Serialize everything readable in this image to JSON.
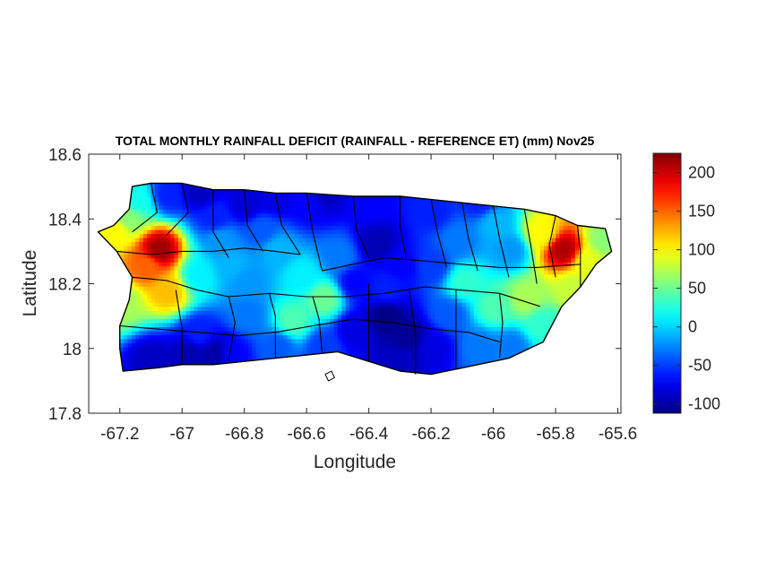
{
  "chart_data": {
    "type": "heatmap",
    "title": "TOTAL MONTHLY RAINFALL DEFICIT (RAINFALL - REFERENCE ET) (mm) Nov25",
    "xlabel": "Longitude",
    "ylabel": "Latitude",
    "xlim": [
      -67.3,
      -65.59
    ],
    "ylim": [
      17.8,
      18.6
    ],
    "xticks": [
      -67.2,
      -67,
      -66.8,
      -66.6,
      -66.4,
      -66.2,
      -66,
      -65.8,
      -65.6
    ],
    "xtick_labels": [
      "-67.2",
      "-67",
      "-66.8",
      "-66.6",
      "-66.4",
      "-66.2",
      "-66",
      "-65.8",
      "-65.6"
    ],
    "yticks": [
      17.8,
      18,
      18.2,
      18.4,
      18.6
    ],
    "ytick_labels": [
      "17.8",
      "18",
      "18.2",
      "18.4",
      "18.6"
    ],
    "colorbar": {
      "range": [
        -112,
        225
      ],
      "ticks": [
        -100,
        -50,
        0,
        50,
        100,
        150,
        200
      ],
      "tick_labels": [
        "-100",
        "-50",
        "0",
        "50",
        "100",
        "150",
        "200"
      ],
      "colormap": "jet"
    },
    "region": "Puerto Rico",
    "outline": [
      [
        -67.27,
        18.36
      ],
      [
        -67.22,
        18.38
      ],
      [
        -67.17,
        18.43
      ],
      [
        -67.16,
        18.5
      ],
      [
        -67.1,
        18.51
      ],
      [
        -67.0,
        18.51
      ],
      [
        -66.9,
        18.49
      ],
      [
        -66.8,
        18.49
      ],
      [
        -66.7,
        18.48
      ],
      [
        -66.6,
        18.48
      ],
      [
        -66.45,
        18.47
      ],
      [
        -66.3,
        18.47
      ],
      [
        -66.2,
        18.46
      ],
      [
        -66.1,
        18.45
      ],
      [
        -66.0,
        18.44
      ],
      [
        -65.9,
        18.43
      ],
      [
        -65.8,
        18.41
      ],
      [
        -65.73,
        18.38
      ],
      [
        -65.64,
        18.37
      ],
      [
        -65.62,
        18.3
      ],
      [
        -65.67,
        18.26
      ],
      [
        -65.72,
        18.19
      ],
      [
        -65.78,
        18.13
      ],
      [
        -65.84,
        18.02
      ],
      [
        -65.95,
        17.97
      ],
      [
        -66.1,
        17.94
      ],
      [
        -66.2,
        17.92
      ],
      [
        -66.3,
        17.93
      ],
      [
        -66.4,
        17.96
      ],
      [
        -66.5,
        17.99
      ],
      [
        -66.6,
        17.98
      ],
      [
        -66.7,
        17.97
      ],
      [
        -66.8,
        17.96
      ],
      [
        -66.9,
        17.95
      ],
      [
        -67.0,
        17.95
      ],
      [
        -67.08,
        17.94
      ],
      [
        -67.19,
        17.93
      ],
      [
        -67.2,
        18.0
      ],
      [
        -67.2,
        18.07
      ],
      [
        -67.17,
        18.15
      ],
      [
        -67.16,
        18.22
      ],
      [
        -67.21,
        18.3
      ],
      [
        -67.27,
        18.36
      ]
    ],
    "islands": [
      [
        [
          -66.54,
          17.92
        ],
        [
          -66.52,
          17.93
        ],
        [
          -66.51,
          17.91
        ],
        [
          -66.53,
          17.9
        ],
        [
          -66.54,
          17.92
        ]
      ]
    ],
    "internal_boundaries": [
      [
        [
          -67.1,
          18.51
        ],
        [
          -67.08,
          18.42
        ],
        [
          -67.16,
          18.36
        ]
      ],
      [
        [
          -67.0,
          18.51
        ],
        [
          -66.98,
          18.42
        ],
        [
          -67.05,
          18.35
        ]
      ],
      [
        [
          -66.9,
          18.49
        ],
        [
          -66.9,
          18.36
        ],
        [
          -66.85,
          18.28
        ]
      ],
      [
        [
          -66.8,
          18.49
        ],
        [
          -66.79,
          18.38
        ],
        [
          -66.74,
          18.3
        ]
      ],
      [
        [
          -66.7,
          18.48
        ],
        [
          -66.68,
          18.38
        ],
        [
          -66.62,
          18.29
        ]
      ],
      [
        [
          -66.6,
          18.48
        ],
        [
          -66.58,
          18.36
        ],
        [
          -66.55,
          18.24
        ]
      ],
      [
        [
          -66.45,
          18.47
        ],
        [
          -66.44,
          18.37
        ],
        [
          -66.4,
          18.28
        ]
      ],
      [
        [
          -66.3,
          18.47
        ],
        [
          -66.3,
          18.38
        ],
        [
          -66.28,
          18.28
        ]
      ],
      [
        [
          -66.2,
          18.46
        ],
        [
          -66.18,
          18.36
        ],
        [
          -66.15,
          18.25
        ]
      ],
      [
        [
          -66.1,
          18.45
        ],
        [
          -66.08,
          18.34
        ],
        [
          -66.05,
          18.24
        ]
      ],
      [
        [
          -66.0,
          18.44
        ],
        [
          -65.98,
          18.34
        ],
        [
          -65.95,
          18.22
        ]
      ],
      [
        [
          -65.9,
          18.43
        ],
        [
          -65.88,
          18.32
        ],
        [
          -65.86,
          18.2
        ]
      ],
      [
        [
          -67.16,
          18.22
        ],
        [
          -67.05,
          18.21
        ],
        [
          -66.95,
          18.18
        ],
        [
          -66.85,
          18.16
        ],
        [
          -66.72,
          18.17
        ],
        [
          -66.6,
          18.16
        ],
        [
          -66.48,
          18.16
        ],
        [
          -66.35,
          18.17
        ],
        [
          -66.22,
          18.19
        ],
        [
          -66.1,
          18.18
        ],
        [
          -65.98,
          18.17
        ],
        [
          -65.85,
          18.13
        ]
      ],
      [
        [
          -67.2,
          18.07
        ],
        [
          -67.08,
          18.06
        ],
        [
          -66.95,
          18.05
        ],
        [
          -66.82,
          18.04
        ],
        [
          -66.7,
          18.05
        ],
        [
          -66.58,
          18.07
        ],
        [
          -66.45,
          18.09
        ],
        [
          -66.32,
          18.08
        ],
        [
          -66.2,
          18.06
        ],
        [
          -66.08,
          18.05
        ],
        [
          -65.98,
          18.02
        ]
      ],
      [
        [
          -67.0,
          17.95
        ],
        [
          -67.0,
          18.06
        ],
        [
          -67.02,
          18.18
        ]
      ],
      [
        [
          -66.85,
          17.96
        ],
        [
          -66.83,
          18.08
        ],
        [
          -66.85,
          18.16
        ]
      ],
      [
        [
          -66.7,
          17.97
        ],
        [
          -66.7,
          18.1
        ],
        [
          -66.72,
          18.17
        ]
      ],
      [
        [
          -66.55,
          17.99
        ],
        [
          -66.56,
          18.09
        ],
        [
          -66.58,
          18.16
        ]
      ],
      [
        [
          -66.4,
          17.96
        ],
        [
          -66.4,
          18.08
        ],
        [
          -66.4,
          18.2
        ]
      ],
      [
        [
          -66.25,
          17.92
        ],
        [
          -66.25,
          18.05
        ],
        [
          -66.27,
          18.18
        ]
      ],
      [
        [
          -66.12,
          17.94
        ],
        [
          -66.12,
          18.06
        ],
        [
          -66.12,
          18.18
        ]
      ],
      [
        [
          -65.98,
          17.97
        ],
        [
          -65.97,
          18.08
        ],
        [
          -65.98,
          18.17
        ]
      ],
      [
        [
          -66.55,
          18.24
        ],
        [
          -66.45,
          18.26
        ],
        [
          -66.35,
          18.28
        ],
        [
          -66.22,
          18.27
        ],
        [
          -66.1,
          18.26
        ],
        [
          -65.98,
          18.25
        ],
        [
          -65.86,
          18.25
        ],
        [
          -65.72,
          18.26
        ]
      ],
      [
        [
          -67.21,
          18.3
        ],
        [
          -67.1,
          18.29
        ],
        [
          -67.0,
          18.3
        ],
        [
          -66.9,
          18.3
        ],
        [
          -66.8,
          18.31
        ],
        [
          -66.7,
          18.3
        ],
        [
          -66.62,
          18.29
        ]
      ],
      [
        [
          -65.8,
          18.41
        ],
        [
          -65.82,
          18.32
        ],
        [
          -65.8,
          18.22
        ]
      ],
      [
        [
          -65.73,
          18.38
        ],
        [
          -65.72,
          18.3
        ],
        [
          -65.72,
          18.19
        ]
      ]
    ],
    "field_centers": [
      [
        -67.08,
        18.3,
        215
      ],
      [
        -67.12,
        18.25,
        150
      ],
      [
        -67.05,
        18.17,
        120
      ],
      [
        -67.22,
        18.36,
        100
      ],
      [
        -67.2,
        18.14,
        70
      ],
      [
        -66.95,
        18.22,
        10
      ],
      [
        -66.85,
        18.25,
        -10
      ],
      [
        -66.9,
        18.4,
        -60
      ],
      [
        -66.95,
        18.48,
        -90
      ],
      [
        -67.05,
        18.47,
        -60
      ],
      [
        -66.8,
        18.44,
        -85
      ],
      [
        -66.7,
        18.46,
        -80
      ],
      [
        -66.6,
        18.44,
        -70
      ],
      [
        -66.55,
        18.47,
        -90
      ],
      [
        -66.7,
        18.3,
        -10
      ],
      [
        -66.62,
        18.22,
        10
      ],
      [
        -66.55,
        18.15,
        50
      ],
      [
        -66.65,
        18.08,
        40
      ],
      [
        -66.8,
        18.1,
        -30
      ],
      [
        -66.8,
        18.2,
        -20
      ],
      [
        -66.95,
        18.04,
        -60
      ],
      [
        -66.9,
        17.98,
        -100
      ],
      [
        -66.98,
        17.98,
        -95
      ],
      [
        -67.1,
        17.96,
        -90
      ],
      [
        -66.85,
        17.98,
        -70
      ],
      [
        -66.7,
        18.0,
        -40
      ],
      [
        -66.55,
        18.0,
        -50
      ],
      [
        -66.45,
        18.05,
        -80
      ],
      [
        -66.35,
        18.09,
        -110
      ],
      [
        -66.28,
        18.03,
        -105
      ],
      [
        -66.3,
        17.96,
        -90
      ],
      [
        -66.2,
        18.0,
        -80
      ],
      [
        -66.15,
        18.1,
        -40
      ],
      [
        -66.38,
        18.32,
        -95
      ],
      [
        -66.3,
        18.25,
        -70
      ],
      [
        -66.35,
        18.18,
        -60
      ],
      [
        -66.2,
        18.25,
        -50
      ],
      [
        -66.12,
        18.33,
        -30
      ],
      [
        -66.0,
        18.38,
        -10
      ],
      [
        -66.05,
        18.45,
        -60
      ],
      [
        -66.2,
        18.42,
        -60
      ],
      [
        -66.4,
        18.44,
        -70
      ],
      [
        -65.95,
        18.3,
        -20
      ],
      [
        -65.9,
        18.15,
        70
      ],
      [
        -66.0,
        18.12,
        40
      ],
      [
        -66.05,
        18.0,
        -30
      ],
      [
        -65.95,
        18.0,
        -30
      ],
      [
        -66.1,
        18.2,
        30
      ],
      [
        -65.78,
        18.3,
        210
      ],
      [
        -65.85,
        18.35,
        100
      ],
      [
        -65.7,
        18.26,
        90
      ],
      [
        -65.75,
        18.18,
        80
      ],
      [
        -65.65,
        18.33,
        60
      ],
      [
        -65.85,
        18.07,
        30
      ],
      [
        -66.5,
        18.28,
        -30
      ],
      [
        -66.75,
        18.36,
        -40
      ],
      [
        -66.88,
        18.33,
        -20
      ],
      [
        -67.15,
        18.45,
        20
      ],
      [
        -67.18,
        18.4,
        60
      ],
      [
        -66.45,
        18.2,
        -70
      ]
    ]
  }
}
